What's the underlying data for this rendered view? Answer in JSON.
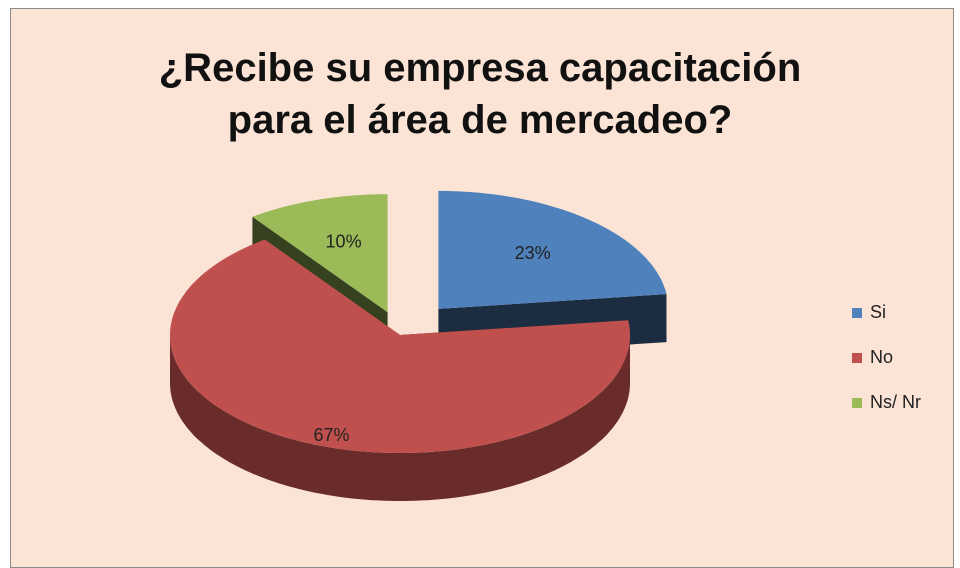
{
  "chart_data": {
    "type": "pie",
    "title": "¿Recibe su empresa capacitación para el área de mercadeo?",
    "categories": [
      "Si",
      "No",
      "Ns/ Nr"
    ],
    "values": [
      23,
      67,
      10
    ],
    "value_labels": [
      "23%",
      "67%",
      "10%"
    ],
    "colors": [
      "#4f81bd",
      "#c0504d",
      "#9bbb59"
    ],
    "legend": "right"
  }
}
